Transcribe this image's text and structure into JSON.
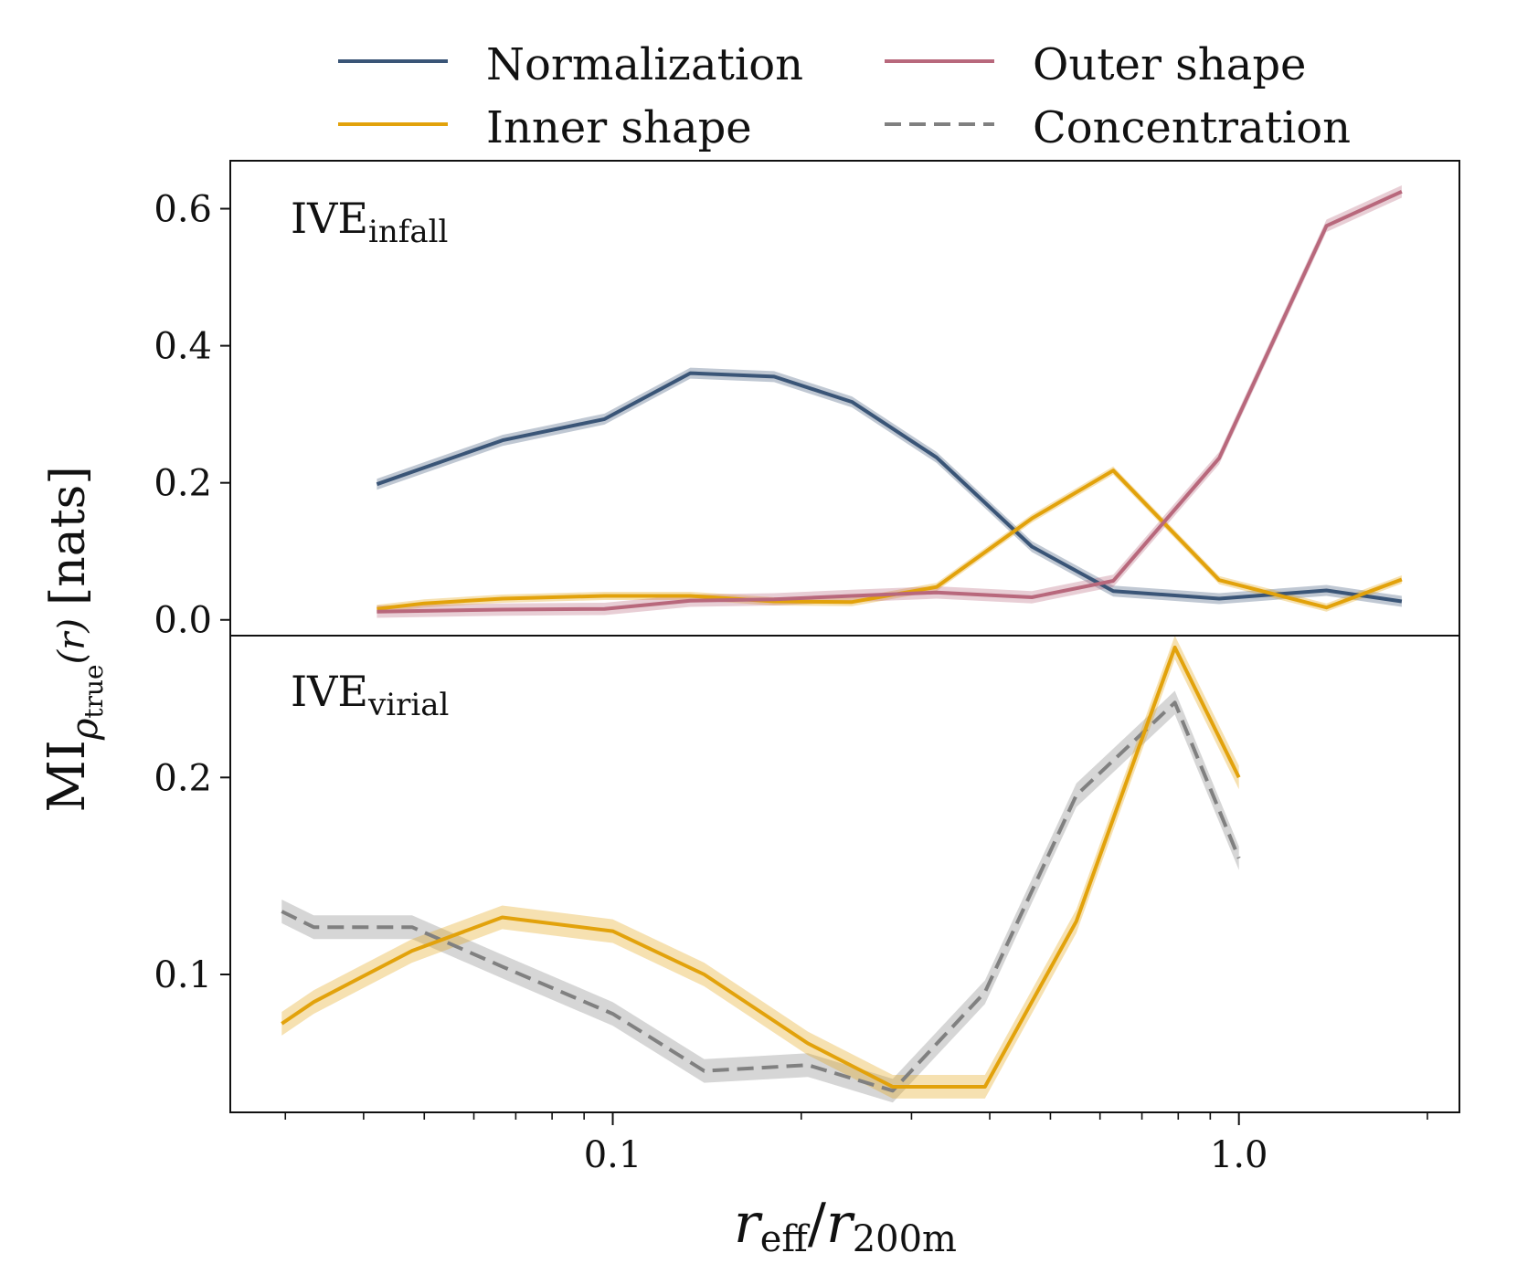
{
  "legend": {
    "entries": [
      {
        "label": "Normalization",
        "color": "#3a5577",
        "dashed": false
      },
      {
        "label": "Inner shape",
        "color": "#e2a20b",
        "dashed": false
      },
      {
        "label": "Outer shape",
        "color": "#b8687c",
        "dashed": false
      },
      {
        "label": "Concentration",
        "color": "#808080",
        "dashed": true
      }
    ]
  },
  "xaxis": {
    "label_main": "r",
    "label_sub1": "eff",
    "label_sep": "/",
    "label_main2": "r",
    "label_sub2": "200m",
    "scale": "log",
    "xlim": [
      0.0245,
      2.25
    ],
    "ticks": [
      0.1,
      1.0
    ],
    "tick_labels": [
      "0.1",
      "1.0"
    ],
    "minor_ticks": [
      0.03,
      0.04,
      0.05,
      0.06,
      0.07,
      0.08,
      0.09,
      0.2,
      0.3,
      0.4,
      0.5,
      0.6,
      0.7,
      0.8,
      0.9,
      2.0
    ]
  },
  "yaxis": {
    "label_main": "MI",
    "label_sub": "ρ",
    "label_subsub": "true",
    "label_arg": "(r)",
    "label_unit": "[nats]"
  },
  "chart_data": [
    {
      "type": "line",
      "panel_label": "IVE",
      "panel_label_sub": "infall",
      "ylim": [
        -0.023,
        0.67
      ],
      "yticks": [
        0.0,
        0.2,
        0.4,
        0.6
      ],
      "ytick_labels": [
        "0.0",
        "0.2",
        "0.4",
        "0.6"
      ],
      "series": [
        {
          "name": "Normalization",
          "color": "#3a5577",
          "dashed": false,
          "band": 0.008,
          "x": [
            0.042,
            0.0667,
            0.097,
            0.133,
            0.181,
            0.241,
            0.329,
            0.467,
            0.63,
            0.93,
            1.38,
            1.82
          ],
          "y": [
            0.198,
            0.262,
            0.293,
            0.36,
            0.355,
            0.318,
            0.237,
            0.107,
            0.042,
            0.031,
            0.043,
            0.027
          ]
        },
        {
          "name": "Inner shape",
          "color": "#e2a20b",
          "dashed": false,
          "band": 0.006,
          "x": [
            0.042,
            0.05,
            0.0667,
            0.097,
            0.133,
            0.181,
            0.241,
            0.329,
            0.467,
            0.63,
            0.93,
            1.38,
            1.82
          ],
          "y": [
            0.016,
            0.024,
            0.031,
            0.035,
            0.035,
            0.027,
            0.026,
            0.048,
            0.148,
            0.218,
            0.058,
            0.018,
            0.059
          ]
        },
        {
          "name": "Outer shape",
          "color": "#b8687c",
          "dashed": false,
          "band": 0.009,
          "x": [
            0.042,
            0.0667,
            0.097,
            0.133,
            0.181,
            0.241,
            0.329,
            0.467,
            0.63,
            0.93,
            1.38,
            1.82
          ],
          "y": [
            0.012,
            0.015,
            0.016,
            0.028,
            0.03,
            0.035,
            0.04,
            0.033,
            0.057,
            0.236,
            0.575,
            0.625
          ]
        }
      ]
    },
    {
      "type": "line",
      "panel_label": "IVE",
      "panel_label_sub": "virial",
      "ylim": [
        0.03,
        0.272
      ],
      "yticks": [
        0.1,
        0.2
      ],
      "ytick_labels": [
        "0.1",
        "0.2"
      ],
      "series": [
        {
          "name": "Concentration",
          "color": "#808080",
          "dashed": true,
          "band": 0.006,
          "x": [
            0.0296,
            0.0333,
            0.0478,
            0.0666,
            0.1,
            0.14,
            0.205,
            0.28,
            0.393,
            0.55,
            0.79,
            1.0
          ],
          "y": [
            0.132,
            0.124,
            0.124,
            0.104,
            0.08,
            0.051,
            0.054,
            0.041,
            0.091,
            0.191,
            0.238,
            0.159
          ]
        },
        {
          "name": "Inner shape",
          "color": "#e2a20b",
          "dashed": false,
          "band": 0.006,
          "x": [
            0.0296,
            0.0333,
            0.0478,
            0.0666,
            0.1,
            0.14,
            0.205,
            0.28,
            0.393,
            0.55,
            0.79,
            1.0
          ],
          "y": [
            0.075,
            0.086,
            0.112,
            0.129,
            0.122,
            0.1,
            0.065,
            0.043,
            0.043,
            0.127,
            0.266,
            0.2
          ]
        }
      ]
    }
  ]
}
